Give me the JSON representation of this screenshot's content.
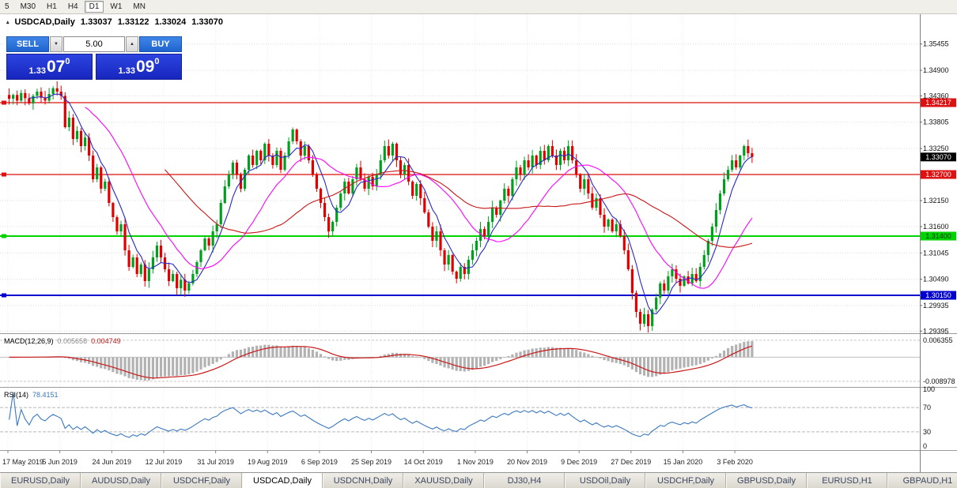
{
  "toolbar": {
    "timeframes": [
      "5",
      "M30",
      "H1",
      "H4",
      "D1",
      "W1",
      "MN"
    ],
    "active": "D1"
  },
  "chart": {
    "header": {
      "icon": "▴",
      "symbol": "USDCAD,Daily",
      "open": "1.33037",
      "high": "1.33122",
      "low": "1.33024",
      "close": "1.33070"
    }
  },
  "trade_panel": {
    "sell_label": "SELL",
    "buy_label": "BUY",
    "volume": "5.00",
    "spinner_down_glyph": "▼",
    "spinner_up_glyph": "▲",
    "bid": {
      "prefix": "1.33",
      "big": "07",
      "sup": "0"
    },
    "ask": {
      "prefix": "1.33",
      "big": "09",
      "sup": "0"
    }
  },
  "indicators": {
    "macd": {
      "name": "MACD(12,26,9)",
      "value_histogram": "0.005658",
      "value_signal": "0.004749",
      "axis_labels": [
        {
          "value": 0.006355,
          "label": "0.006355"
        },
        {
          "value": -0.008978,
          "label": "-0.008978"
        }
      ],
      "histogram_color": "#b2b2b2",
      "signal_color": "#c81818"
    },
    "rsi": {
      "name": "RSI(14)",
      "value": "78.4151",
      "axis_labels": [
        {
          "value": 100,
          "label": "100"
        },
        {
          "value": 70,
          "label": "70"
        },
        {
          "value": 30,
          "label": "30"
        },
        {
          "value": 0,
          "label": "0"
        }
      ],
      "bands": [
        70,
        30
      ],
      "line_color": "#3a78c0"
    }
  },
  "chart_data": {
    "type": "candlestick",
    "symbol": "USDCAD",
    "timeframe": "Daily",
    "up_color": "#00a01e",
    "down_color": "#e00000",
    "closes": [
      1.343,
      1.3438,
      1.3426,
      1.3442,
      1.3431,
      1.342,
      1.3436,
      1.3445,
      1.3432,
      1.3426,
      1.344,
      1.3452,
      1.3445,
      1.3436,
      1.337,
      1.339,
      1.3345,
      1.3362,
      1.333,
      1.3348,
      1.331,
      1.326,
      1.3285,
      1.324,
      1.3255,
      1.321,
      1.318,
      1.315,
      1.3165,
      1.311,
      1.3075,
      1.3095,
      1.306,
      1.308,
      1.3045,
      1.307,
      1.3095,
      1.312,
      1.3095,
      1.307,
      1.3045,
      1.306,
      1.303,
      1.3048,
      1.3025,
      1.304,
      1.306,
      1.3085,
      1.311,
      1.3135,
      1.312,
      1.315,
      1.3165,
      1.321,
      1.3245,
      1.327,
      1.3295,
      1.327,
      1.324,
      1.328,
      1.331,
      1.329,
      1.332,
      1.33,
      1.3335,
      1.331,
      1.329,
      1.332,
      1.328,
      1.331,
      1.334,
      1.3365,
      1.334,
      1.331,
      1.333,
      1.33,
      1.327,
      1.324,
      1.321,
      1.318,
      1.315,
      1.317,
      1.32,
      1.323,
      1.3255,
      1.323,
      1.326,
      1.3285,
      1.326,
      1.324,
      1.3265,
      1.3245,
      1.327,
      1.33,
      1.333,
      1.331,
      1.3335,
      1.33,
      1.327,
      1.329,
      1.3255,
      1.3225,
      1.325,
      1.322,
      1.319,
      1.316,
      1.313,
      1.315,
      1.311,
      1.308,
      1.31,
      1.3065,
      1.305,
      1.3075,
      1.306,
      1.309,
      1.311,
      1.313,
      1.3155,
      1.314,
      1.317,
      1.32,
      1.3185,
      1.3215,
      1.324,
      1.3225,
      1.326,
      1.3285,
      1.327,
      1.33,
      1.3285,
      1.331,
      1.329,
      1.332,
      1.33,
      1.333,
      1.331,
      1.329,
      1.332,
      1.33,
      1.333,
      1.33,
      1.327,
      1.324,
      1.326,
      1.323,
      1.32,
      1.322,
      1.3185,
      1.316,
      1.3175,
      1.315,
      1.3165,
      1.314,
      1.311,
      1.307,
      1.302,
      1.298,
      1.2955,
      1.2975,
      1.295,
      1.2985,
      1.301,
      1.304,
      1.3025,
      1.3055,
      1.307,
      1.305,
      1.3035,
      1.3055,
      1.304,
      1.306,
      1.3045,
      1.3075,
      1.31,
      1.313,
      1.316,
      1.3195,
      1.323,
      1.326,
      1.328,
      1.33,
      1.3285,
      1.331,
      1.333,
      1.3315,
      1.3307
    ],
    "last_ohlc": {
      "open": 1.33037,
      "high": 1.33122,
      "low": 1.33024,
      "close": 1.3307
    },
    "date_ticks": [
      {
        "i": 0,
        "label": "17 May 2019"
      },
      {
        "i": 13,
        "label": "5 Jun 2019"
      },
      {
        "i": 26,
        "label": "24 Jun 2019"
      },
      {
        "i": 39,
        "label": "12 Jul 2019"
      },
      {
        "i": 52,
        "label": "31 Jul 2019"
      },
      {
        "i": 65,
        "label": "19 Aug 2019"
      },
      {
        "i": 78,
        "label": "6 Sep 2019"
      },
      {
        "i": 91,
        "label": "25 Sep 2019"
      },
      {
        "i": 104,
        "label": "14 Oct 2019"
      },
      {
        "i": 117,
        "label": "1 Nov 2019"
      },
      {
        "i": 130,
        "label": "20 Nov 2019"
      },
      {
        "i": 143,
        "label": "9 Dec 2019"
      },
      {
        "i": 156,
        "label": "27 Dec 2019"
      },
      {
        "i": 169,
        "label": "15 Jan 2020"
      },
      {
        "i": 182,
        "label": "3 Feb 2020"
      }
    ],
    "price_axis_labels": [
      "1.35455",
      "1.34900",
      "1.34360",
      "1.33805",
      "1.33250",
      "1.32150",
      "1.31600",
      "1.31045",
      "1.30490",
      "1.29935",
      "1.29395"
    ],
    "grid_only_levels": [
      1.32695
    ],
    "levels": [
      {
        "price": 1.34217,
        "label": "1.34217",
        "color": "#dd1111",
        "text": "#ffffff",
        "width": 1.3
      },
      {
        "price": 1.327,
        "label": "1.32700",
        "color": "#dd1111",
        "text": "#ffffff",
        "width": 1.3
      },
      {
        "price": 1.314,
        "label": "1.31400",
        "color": "#00d400",
        "text": "#03350a",
        "width": 2
      },
      {
        "price": 1.3015,
        "label": "1.30150",
        "color": "#0000cf",
        "text": "#ffffff",
        "width": 2
      }
    ],
    "current_price": {
      "price": 1.3307,
      "label": "1.33070",
      "bg": "#000000",
      "text": "#ffffff"
    },
    "moving_averages": [
      {
        "period": 6,
        "color": "#2828c8"
      },
      {
        "period": 20,
        "color": "#ff00ff"
      },
      {
        "period": 40,
        "color": "#c81616"
      }
    ]
  },
  "tabs": [
    {
      "label": "EURUSD,Daily",
      "active": false
    },
    {
      "label": "AUDUSD,Daily",
      "active": false
    },
    {
      "label": "USDCHF,Daily",
      "active": false
    },
    {
      "label": "USDCAD,Daily",
      "active": true
    },
    {
      "label": "USDCNH,Daily",
      "active": false
    },
    {
      "label": "XAUUSD,Daily",
      "active": false
    },
    {
      "label": "DJ30,H4",
      "active": false
    },
    {
      "label": "USDOil,Daily",
      "active": false
    },
    {
      "label": "USDCHF,Daily",
      "active": false
    },
    {
      "label": "GBPUSD,Daily",
      "active": false
    },
    {
      "label": "EURUSD,H1",
      "active": false
    },
    {
      "label": "GBPAUD,H1",
      "active": false
    }
  ]
}
